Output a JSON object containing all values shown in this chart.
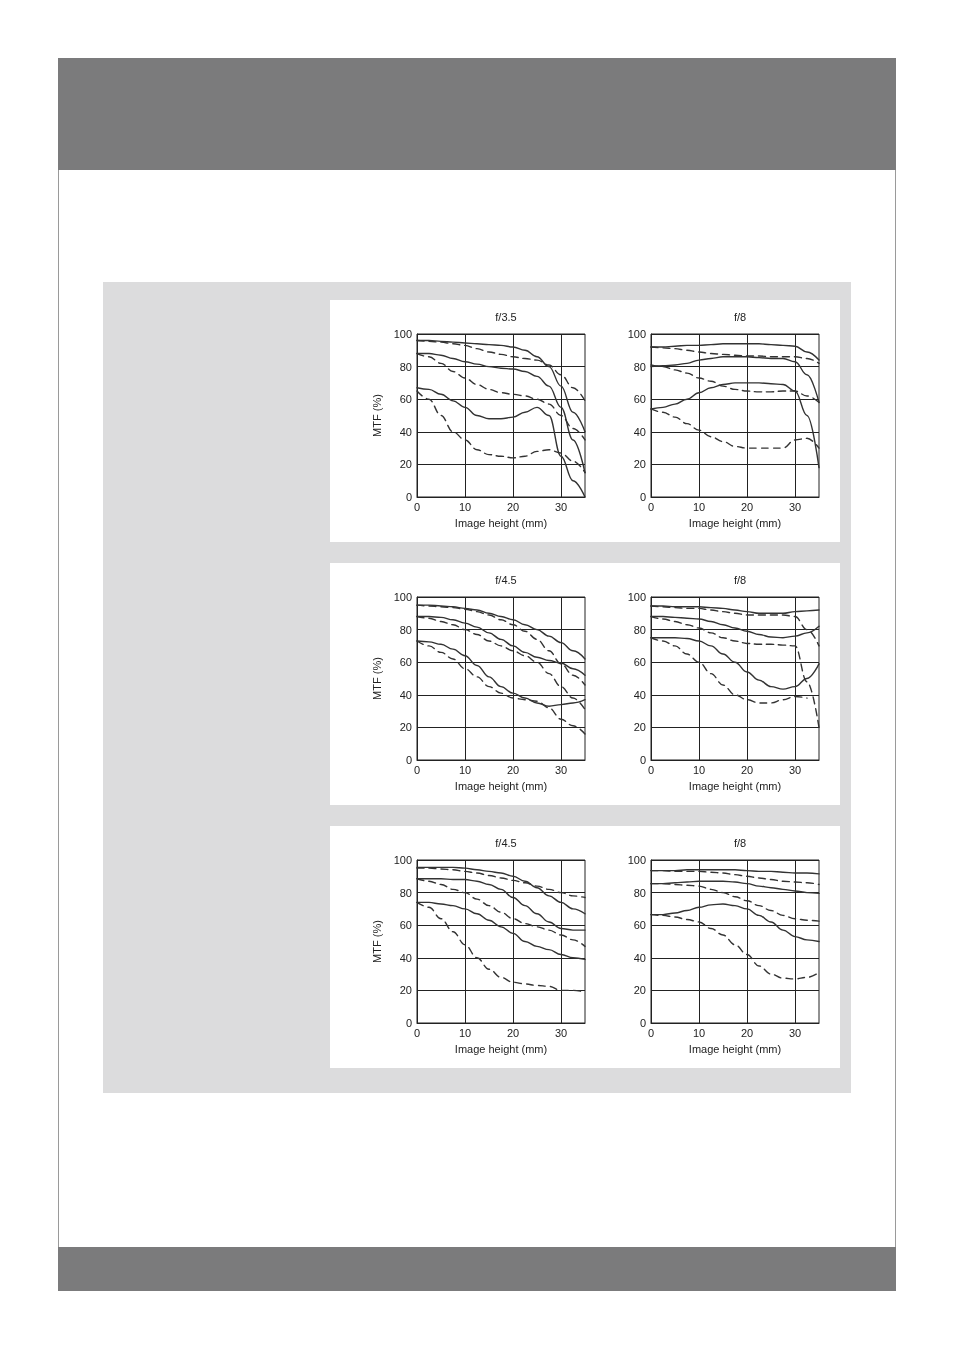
{
  "chart_data": [
    {
      "type": "line",
      "title": "f/3.5",
      "xlabel": "Image height (mm)",
      "ylabel": "MTF (%)",
      "x": [
        0,
        2.5,
        5,
        7.5,
        10,
        12.5,
        15,
        17.5,
        20,
        22.5,
        25,
        27.5,
        30,
        32.5,
        35
      ],
      "xlim": [
        0,
        35
      ],
      "xticks": [
        0,
        10,
        20,
        30
      ],
      "ylim": [
        0,
        100
      ],
      "yticks": [
        0,
        20,
        40,
        60,
        80,
        100
      ],
      "grid": true,
      "series": [
        {
          "color": "#333333",
          "line_style": "solid",
          "values": [
            96,
            96,
            95.5,
            95,
            94.5,
            94,
            93.5,
            93,
            92,
            90,
            86,
            80,
            68,
            52,
            40
          ]
        },
        {
          "color": "#333333",
          "line_style": "dashed",
          "values": [
            96,
            95.5,
            95,
            94,
            93,
            91,
            89,
            87.5,
            86,
            85,
            84,
            81,
            75,
            67,
            59
          ]
        },
        {
          "color": "#333333",
          "line_style": "solid",
          "values": [
            88,
            88,
            87,
            85,
            83,
            81.5,
            80,
            79,
            78.5,
            77,
            74,
            68,
            55,
            35,
            15
          ]
        },
        {
          "color": "#333333",
          "line_style": "dashed",
          "values": [
            88,
            86,
            82,
            77,
            73,
            69,
            66,
            64,
            63,
            62,
            60,
            57,
            50,
            42,
            35
          ]
        },
        {
          "color": "#333333",
          "line_style": "solid",
          "values": [
            67,
            66,
            63,
            59,
            55,
            50,
            48,
            48,
            49,
            52,
            55,
            50,
            25,
            10,
            0
          ]
        },
        {
          "color": "#333333",
          "line_style": "dashed",
          "values": [
            65,
            60,
            50,
            40,
            35,
            29,
            26,
            25,
            24,
            25,
            28,
            29,
            27,
            22,
            15
          ]
        }
      ]
    },
    {
      "type": "line",
      "title": "f/8",
      "xlabel": "Image height (mm)",
      "x": [
        0,
        2.5,
        5,
        7.5,
        10,
        12.5,
        15,
        17.5,
        20,
        22.5,
        25,
        27.5,
        30,
        32.5,
        35
      ],
      "xlim": [
        0,
        35
      ],
      "xticks": [
        0,
        10,
        20,
        30
      ],
      "ylim": [
        0,
        100
      ],
      "yticks": [
        0,
        20,
        40,
        60,
        80,
        100
      ],
      "grid": true,
      "series": [
        {
          "color": "#333333",
          "line_style": "solid",
          "values": [
            92,
            92,
            92.5,
            93,
            93,
            93.5,
            94,
            94,
            94,
            94,
            93.5,
            93,
            92.5,
            89,
            84
          ]
        },
        {
          "color": "#333333",
          "line_style": "dashed",
          "values": [
            92,
            91.5,
            91,
            90,
            89,
            88,
            87.5,
            87,
            86.5,
            86.5,
            86,
            86,
            86,
            85,
            82
          ]
        },
        {
          "color": "#333333",
          "line_style": "solid",
          "values": [
            80,
            80.5,
            81,
            82,
            84,
            85,
            86,
            86,
            86,
            85.5,
            85,
            85,
            83,
            75,
            58
          ]
        },
        {
          "color": "#333333",
          "line_style": "dashed",
          "values": [
            81,
            80,
            78,
            76,
            73,
            71,
            68,
            66,
            65,
            64.5,
            64.5,
            65,
            65,
            62,
            58
          ]
        },
        {
          "color": "#333333",
          "line_style": "solid",
          "values": [
            54,
            55,
            57,
            60,
            64,
            67,
            69,
            70,
            70,
            70,
            69.5,
            69,
            65,
            50,
            18
          ]
        },
        {
          "color": "#333333",
          "line_style": "dashed",
          "values": [
            54,
            52,
            49,
            45,
            41,
            37,
            34,
            31,
            30,
            30,
            30,
            30,
            35,
            36,
            30
          ]
        }
      ]
    },
    {
      "type": "line",
      "title": "f/4.5",
      "xlabel": "Image height (mm)",
      "ylabel": "MTF (%)",
      "x": [
        0,
        2.5,
        5,
        7.5,
        10,
        12.5,
        15,
        17.5,
        20,
        22.5,
        25,
        27.5,
        30,
        32.5,
        35
      ],
      "xlim": [
        0,
        35
      ],
      "xticks": [
        0,
        10,
        20,
        30
      ],
      "ylim": [
        0,
        100
      ],
      "yticks": [
        0,
        20,
        40,
        60,
        80,
        100
      ],
      "grid": true,
      "series": [
        {
          "color": "#333333",
          "line_style": "solid",
          "values": [
            95,
            95,
            94.5,
            94,
            93,
            92,
            90,
            88,
            86,
            83,
            80,
            76,
            72,
            67,
            62
          ]
        },
        {
          "color": "#333333",
          "line_style": "dashed",
          "values": [
            95,
            94.5,
            94,
            93.5,
            92.5,
            91,
            89,
            86,
            83,
            79,
            74,
            67,
            59,
            52,
            46
          ]
        },
        {
          "color": "#333333",
          "line_style": "solid",
          "values": [
            88,
            88,
            87.5,
            86,
            84,
            81.5,
            78,
            74,
            70,
            66,
            63,
            61,
            59.5,
            56,
            52
          ]
        },
        {
          "color": "#333333",
          "line_style": "dashed",
          "values": [
            88,
            87,
            85,
            83,
            80,
            77,
            73,
            70,
            67,
            64,
            60,
            53,
            45,
            38,
            31
          ]
        },
        {
          "color": "#333333",
          "line_style": "solid",
          "values": [
            73,
            72.5,
            71,
            68,
            64,
            58,
            51,
            45,
            41,
            38,
            35,
            33,
            34,
            35,
            37
          ]
        },
        {
          "color": "#333333",
          "line_style": "dashed",
          "values": [
            73,
            70,
            66,
            62,
            56,
            51,
            45,
            41,
            38,
            37,
            36,
            32,
            25,
            21,
            16
          ]
        }
      ]
    },
    {
      "type": "line",
      "title": "f/8",
      "xlabel": "Image height (mm)",
      "x": [
        0,
        2.5,
        5,
        7.5,
        10,
        12.5,
        15,
        17.5,
        20,
        22.5,
        25,
        27.5,
        30,
        32.5,
        35
      ],
      "xlim": [
        0,
        35
      ],
      "xticks": [
        0,
        10,
        20,
        30
      ],
      "ylim": [
        0,
        100
      ],
      "yticks": [
        0,
        20,
        40,
        60,
        80,
        100
      ],
      "grid": true,
      "series": [
        {
          "color": "#333333",
          "line_style": "solid",
          "values": [
            94.5,
            94.5,
            94,
            94,
            94,
            93.5,
            93,
            92,
            91,
            90,
            90,
            90,
            91,
            91.5,
            92
          ]
        },
        {
          "color": "#333333",
          "line_style": "dashed",
          "values": [
            94.5,
            94,
            93.5,
            93,
            93,
            92,
            91,
            90,
            89,
            89,
            89,
            89,
            88,
            80,
            70
          ]
        },
        {
          "color": "#333333",
          "line_style": "solid",
          "values": [
            88,
            88,
            87.5,
            87,
            86.5,
            85,
            83,
            81,
            79,
            77,
            75.5,
            75,
            76,
            78,
            82
          ]
        },
        {
          "color": "#333333",
          "line_style": "dashed",
          "values": [
            88,
            86.5,
            85,
            83,
            81,
            78,
            75,
            73,
            71.5,
            71,
            71,
            70.5,
            70,
            48,
            20
          ]
        },
        {
          "color": "#333333",
          "line_style": "solid",
          "values": [
            75,
            75,
            75,
            74.5,
            73,
            70,
            65,
            60,
            54,
            49,
            45,
            43.5,
            45,
            50,
            59
          ]
        },
        {
          "color": "#333333",
          "line_style": "dashed",
          "values": [
            75,
            73,
            70,
            65,
            60,
            53,
            46,
            40,
            37,
            35,
            35,
            37,
            39,
            38,
            null
          ]
        }
      ]
    },
    {
      "type": "line",
      "title": "f/4.5",
      "xlabel": "Image height (mm)",
      "ylabel": "MTF (%)",
      "x": [
        0,
        2.5,
        5,
        7.5,
        10,
        12.5,
        15,
        17.5,
        20,
        22.5,
        25,
        27.5,
        30,
        32.5,
        35
      ],
      "xlim": [
        0,
        35
      ],
      "xticks": [
        0,
        10,
        20,
        30
      ],
      "ylim": [
        0,
        100
      ],
      "yticks": [
        0,
        20,
        40,
        60,
        80,
        100
      ],
      "grid": true,
      "series": [
        {
          "color": "#333333",
          "line_style": "solid",
          "values": [
            95.5,
            95.5,
            95.5,
            95.5,
            95,
            94,
            93,
            92,
            90,
            87,
            83,
            78,
            74,
            70,
            67
          ]
        },
        {
          "color": "#333333",
          "line_style": "dashed",
          "values": [
            95,
            95,
            94.5,
            94,
            93,
            92,
            90.5,
            89,
            87.5,
            86,
            84,
            82,
            80,
            78,
            77
          ]
        },
        {
          "color": "#333333",
          "line_style": "solid",
          "values": [
            88.5,
            88.5,
            88.5,
            88,
            88,
            87,
            85,
            82,
            77,
            72,
            67,
            62,
            58,
            57,
            57
          ]
        },
        {
          "color": "#333333",
          "line_style": "dashed",
          "values": [
            88.5,
            87,
            85,
            82,
            80,
            76,
            72,
            68,
            64,
            61,
            59,
            57,
            54,
            51,
            47
          ]
        },
        {
          "color": "#333333",
          "line_style": "solid",
          "values": [
            74,
            74,
            73,
            72,
            70,
            67,
            63,
            59,
            55,
            50,
            47,
            45,
            42,
            40,
            39
          ]
        },
        {
          "color": "#333333",
          "line_style": "dashed",
          "values": [
            74,
            71,
            64,
            56,
            48,
            40,
            33,
            28,
            25,
            24,
            23,
            22.5,
            20,
            20,
            19
          ]
        }
      ]
    },
    {
      "type": "line",
      "title": "f/8",
      "xlabel": "Image height (mm)",
      "x": [
        0,
        2.5,
        5,
        7.5,
        10,
        12.5,
        15,
        17.5,
        20,
        22.5,
        25,
        27.5,
        30,
        32.5,
        35
      ],
      "xlim": [
        0,
        35
      ],
      "xticks": [
        0,
        10,
        20,
        30
      ],
      "ylim": [
        0,
        100
      ],
      "yticks": [
        0,
        20,
        40,
        60,
        80,
        100
      ],
      "grid": true,
      "series": [
        {
          "color": "#333333",
          "line_style": "solid",
          "values": [
            93.5,
            93.5,
            93.5,
            94,
            94,
            94,
            94,
            94,
            93.5,
            93,
            93,
            92.5,
            92,
            92,
            91.5
          ]
        },
        {
          "color": "#333333",
          "line_style": "dashed",
          "values": [
            93.5,
            93.5,
            93,
            93,
            93,
            92.5,
            92,
            91,
            90,
            89,
            88,
            87,
            86.5,
            86,
            85
          ]
        },
        {
          "color": "#333333",
          "line_style": "solid",
          "values": [
            85.5,
            85.5,
            86,
            86.5,
            87,
            87,
            87,
            86.5,
            85.5,
            84,
            83,
            82,
            81,
            80,
            79.5
          ]
        },
        {
          "color": "#333333",
          "line_style": "dashed",
          "values": [
            85.5,
            85.5,
            85,
            84.5,
            84,
            82,
            80,
            77.5,
            75,
            72,
            69,
            66,
            64,
            63,
            62.5
          ]
        },
        {
          "color": "#333333",
          "line_style": "solid",
          "values": [
            66.5,
            66.5,
            67.5,
            69,
            71,
            72.5,
            73,
            72,
            70,
            66,
            62,
            57,
            53,
            51,
            50
          ]
        },
        {
          "color": "#333333",
          "line_style": "dashed",
          "values": [
            66.5,
            66,
            65,
            63.5,
            62,
            58,
            54,
            48,
            42,
            35,
            30,
            27.5,
            27,
            28,
            31
          ]
        }
      ]
    }
  ]
}
